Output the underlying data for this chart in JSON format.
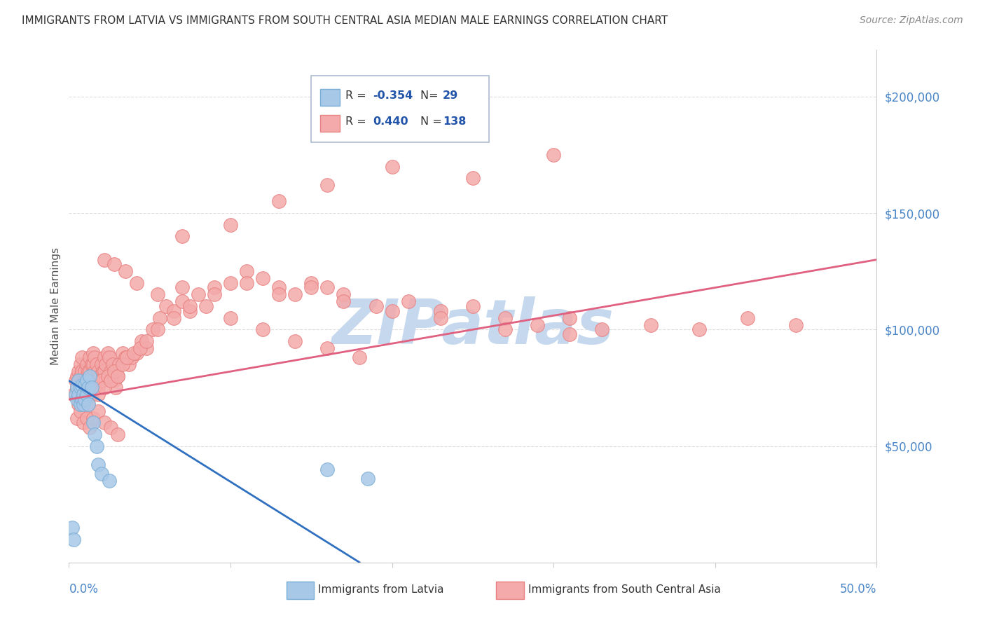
{
  "title": "IMMIGRANTS FROM LATVIA VS IMMIGRANTS FROM SOUTH CENTRAL ASIA MEDIAN MALE EARNINGS CORRELATION CHART",
  "source": "Source: ZipAtlas.com",
  "ylabel": "Median Male Earnings",
  "xlim": [
    0.0,
    0.5
  ],
  "ylim": [
    0,
    220000
  ],
  "latvia_color": "#a8c8e8",
  "latvia_edge": "#7aadd4",
  "sca_color": "#f4aaaa",
  "sca_edge": "#e88080",
  "line_latvia_color": "#3070c0",
  "line_sca_color": "#e06080",
  "background_color": "#ffffff",
  "watermark_color": "#c5d8ed",
  "ytick_color": "#4a86c8",
  "xlabel_color": "#4a86c8",
  "legend_border_color": "#aabbd0",
  "legend_text_color": "#222222",
  "legend_val_color": "#2255aa",
  "latvia_x": [
    0.002,
    0.003,
    0.004,
    0.005,
    0.005,
    0.006,
    0.006,
    0.007,
    0.007,
    0.008,
    0.008,
    0.009,
    0.009,
    0.01,
    0.01,
    0.011,
    0.011,
    0.012,
    0.012,
    0.013,
    0.014,
    0.015,
    0.016,
    0.017,
    0.018,
    0.02,
    0.025,
    0.16,
    0.185
  ],
  "latvia_y": [
    15000,
    10000,
    72000,
    75000,
    70000,
    78000,
    72000,
    75000,
    68000,
    76000,
    70000,
    72000,
    68000,
    76000,
    70000,
    78000,
    72000,
    75000,
    68000,
    80000,
    75000,
    60000,
    55000,
    50000,
    42000,
    38000,
    35000,
    40000,
    36000
  ],
  "sca_x": [
    0.003,
    0.004,
    0.005,
    0.005,
    0.006,
    0.006,
    0.007,
    0.007,
    0.008,
    0.008,
    0.009,
    0.009,
    0.01,
    0.01,
    0.011,
    0.011,
    0.012,
    0.012,
    0.013,
    0.013,
    0.014,
    0.014,
    0.015,
    0.015,
    0.016,
    0.016,
    0.017,
    0.017,
    0.018,
    0.018,
    0.019,
    0.02,
    0.02,
    0.021,
    0.022,
    0.022,
    0.023,
    0.024,
    0.025,
    0.026,
    0.027,
    0.028,
    0.029,
    0.03,
    0.031,
    0.033,
    0.035,
    0.037,
    0.039,
    0.042,
    0.045,
    0.048,
    0.052,
    0.056,
    0.06,
    0.065,
    0.07,
    0.075,
    0.08,
    0.09,
    0.1,
    0.11,
    0.12,
    0.13,
    0.14,
    0.15,
    0.16,
    0.17,
    0.19,
    0.21,
    0.23,
    0.25,
    0.27,
    0.29,
    0.31,
    0.33,
    0.36,
    0.39,
    0.42,
    0.45,
    0.006,
    0.008,
    0.01,
    0.012,
    0.014,
    0.016,
    0.018,
    0.02,
    0.022,
    0.024,
    0.026,
    0.028,
    0.03,
    0.033,
    0.036,
    0.04,
    0.044,
    0.048,
    0.055,
    0.065,
    0.075,
    0.09,
    0.11,
    0.13,
    0.15,
    0.17,
    0.2,
    0.23,
    0.27,
    0.31,
    0.022,
    0.028,
    0.035,
    0.042,
    0.055,
    0.07,
    0.085,
    0.1,
    0.12,
    0.14,
    0.16,
    0.18,
    0.07,
    0.1,
    0.13,
    0.16,
    0.2,
    0.25,
    0.3,
    0.005,
    0.007,
    0.009,
    0.011,
    0.013,
    0.015,
    0.018,
    0.022,
    0.026,
    0.03
  ],
  "sca_y": [
    72000,
    78000,
    80000,
    75000,
    82000,
    78000,
    85000,
    80000,
    88000,
    82000,
    78000,
    74000,
    82000,
    78000,
    85000,
    80000,
    82000,
    78000,
    88000,
    82000,
    85000,
    80000,
    90000,
    85000,
    88000,
    82000,
    85000,
    78000,
    82000,
    75000,
    80000,
    85000,
    78000,
    82000,
    88000,
    82000,
    85000,
    90000,
    88000,
    82000,
    85000,
    78000,
    75000,
    80000,
    85000,
    90000,
    88000,
    85000,
    88000,
    90000,
    95000,
    92000,
    100000,
    105000,
    110000,
    108000,
    112000,
    108000,
    115000,
    118000,
    120000,
    125000,
    122000,
    118000,
    115000,
    120000,
    118000,
    115000,
    110000,
    112000,
    108000,
    110000,
    105000,
    102000,
    105000,
    100000,
    102000,
    100000,
    105000,
    102000,
    68000,
    72000,
    70000,
    68000,
    72000,
    75000,
    72000,
    78000,
    75000,
    80000,
    78000,
    82000,
    80000,
    85000,
    88000,
    90000,
    92000,
    95000,
    100000,
    105000,
    110000,
    115000,
    120000,
    115000,
    118000,
    112000,
    108000,
    105000,
    100000,
    98000,
    130000,
    128000,
    125000,
    120000,
    115000,
    118000,
    110000,
    105000,
    100000,
    95000,
    92000,
    88000,
    140000,
    145000,
    155000,
    162000,
    170000,
    165000,
    175000,
    62000,
    65000,
    60000,
    62000,
    58000,
    62000,
    65000,
    60000,
    58000,
    55000
  ]
}
